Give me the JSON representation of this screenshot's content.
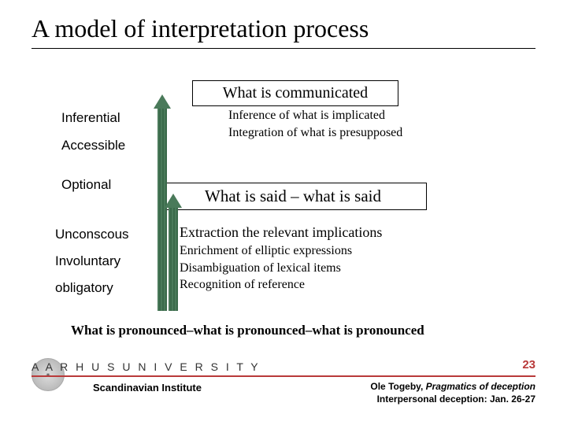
{
  "title": "A model of interpretation process",
  "box1": "What is communicated",
  "detail1": "Inference of what is implicated\nIntegration of what is presupposed",
  "box2": "What is said – what is said",
  "detail2a": "Extraction the relevant implications",
  "detail2b": "Enrichment of elliptic expressions\nDisambiguation of lexical items\nRecognition of reference",
  "leftLabels": {
    "l1": "Inferential",
    "l2": "Accessible",
    "l3": "Optional",
    "l4": "Unconscous",
    "l5": "Involuntary",
    "l6": "obligatory"
  },
  "bottomLine": "What is pronounced–what is pronounced–what is pronounced",
  "footer": {
    "univ": "A A R H U S   U N I V E R S I T Y",
    "page": "23",
    "inst": "Scandinavian Institute",
    "credit1": "Ole Togeby, ",
    "credit1i": "Pragmatics of deception",
    "credit2": "Interpersonal deception: Jan. 26-27"
  },
  "colors": {
    "arrow": "#4a7a5a",
    "accent": "#b93a3a"
  }
}
